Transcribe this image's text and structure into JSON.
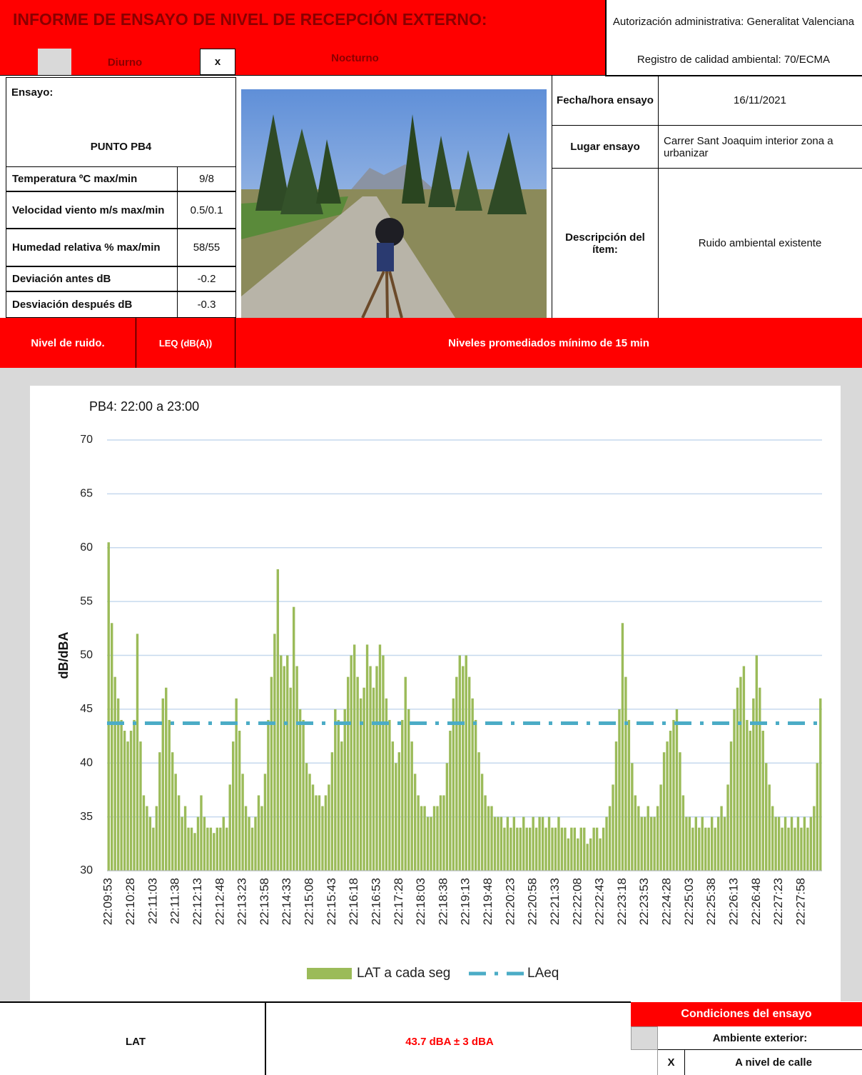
{
  "header": {
    "title": "INFORME DE ENSAYO DE NIVEL DE RECEPCIÓN EXTERNO:",
    "diurno": "Diurno",
    "nocturno_mark": "x",
    "nocturno": "Nocturno",
    "authorization": "Autorización administrativa: Generalitat Valenciana",
    "registry": "Registro de calidad ambiental:  70/ECMA"
  },
  "test": {
    "label": "Ensayo:",
    "point": "PUNTO PB4",
    "conditions": [
      [
        "Temperatura ºC max/min",
        "9/8"
      ],
      [
        "Velocidad viento  m/s max/min",
        "0.5/0.1"
      ],
      [
        "Humedad relativa  % max/min",
        "58/55"
      ],
      [
        "Deviación antes dB",
        "-0.2"
      ],
      [
        "Desviación después dB",
        "-0.3"
      ]
    ]
  },
  "details": [
    [
      "Fecha/hora ensayo",
      "16/11/2021"
    ],
    [
      "Lugar ensayo",
      "Carrer Sant Joaquim interior zona a urbanizar"
    ],
    [
      "Descripción del ítem:",
      "Ruido ambiental existente"
    ]
  ],
  "band": [
    "Nivel de ruido.",
    "LEQ (dB(A))",
    "Niveles promediados mínimo de 15 min"
  ],
  "chart_data": {
    "type": "bar",
    "title": "PB4: 22:00  a 23:00",
    "y_label": "dB/dBA",
    "categories": [
      "22:09:53",
      null,
      null,
      null,
      null,
      null,
      null,
      "22:10:28",
      null,
      null,
      null,
      null,
      null,
      null,
      "22:11:03",
      null,
      null,
      null,
      null,
      null,
      null,
      "22:11:38",
      null,
      null,
      null,
      null,
      null,
      null,
      "22:12:13",
      null,
      null,
      null,
      null,
      null,
      null,
      "22:12:48",
      null,
      null,
      null,
      null,
      null,
      null,
      "22:13:23",
      null,
      null,
      null,
      null,
      null,
      null,
      "22:13:58",
      null,
      null,
      null,
      null,
      null,
      null,
      "22:14:33",
      null,
      null,
      null,
      null,
      null,
      null,
      "22:15:08",
      null,
      null,
      null,
      null,
      null,
      null,
      "22:15:43",
      null,
      null,
      null,
      null,
      null,
      null,
      "22:16:18",
      null,
      null,
      null,
      null,
      null,
      null,
      "22:16:53",
      null,
      null,
      null,
      null,
      null,
      null,
      "22:17:28",
      null,
      null,
      null,
      null,
      null,
      null,
      "22:18:03",
      null,
      null,
      null,
      null,
      null,
      null,
      "22:18:38",
      null,
      null,
      null,
      null,
      null,
      null,
      "22:19:13",
      null,
      null,
      null,
      null,
      null,
      null,
      "22:19:48",
      null,
      null,
      null,
      null,
      null,
      null,
      "22:20:23",
      null,
      null,
      null,
      null,
      null,
      null,
      "22:20:58",
      null,
      null,
      null,
      null,
      null,
      null,
      "22:21:33",
      null,
      null,
      null,
      null,
      null,
      null,
      "22:22:08",
      null,
      null,
      null,
      null,
      null,
      null,
      "22:22:43",
      null,
      null,
      null,
      null,
      null,
      null,
      "22:23:18",
      null,
      null,
      null,
      null,
      null,
      null,
      "22:23:53",
      null,
      null,
      null,
      null,
      null,
      null,
      "22:24:28",
      null,
      null,
      null,
      null,
      null,
      null,
      "22:25:03",
      null,
      null,
      null,
      null,
      null,
      null,
      "22:25:38",
      null,
      null,
      null,
      null,
      null,
      null,
      "22:26:13",
      null,
      null,
      null,
      null,
      null,
      null,
      "22:26:48",
      null,
      null,
      null,
      null,
      null,
      null,
      "22:27:23",
      null,
      null,
      null,
      null,
      null,
      null,
      "22:27:58",
      null,
      null,
      null,
      null,
      null,
      null
    ],
    "series": [
      {
        "name": "LAT a cada seg",
        "color": "#9bbb59",
        "values": [
          60.5,
          53,
          48,
          46,
          44,
          43,
          42,
          43,
          44,
          52,
          42,
          37,
          36,
          35,
          34,
          36,
          41,
          46,
          47,
          44,
          41,
          39,
          37,
          35,
          36,
          34,
          34,
          33.5,
          35,
          37,
          35,
          34,
          34,
          33.5,
          34,
          34,
          35,
          34,
          38,
          42,
          46,
          43,
          39,
          36,
          35,
          34,
          35,
          37,
          36,
          39,
          44,
          48,
          52,
          58,
          50,
          49,
          50,
          47,
          54.5,
          49,
          45,
          44,
          40,
          39,
          38,
          37,
          37,
          36,
          37,
          38,
          41,
          45,
          44,
          42,
          45,
          48,
          50,
          51,
          48,
          46,
          47,
          51,
          49,
          47,
          49,
          51,
          50,
          46,
          44,
          42,
          40,
          41,
          44,
          48,
          45,
          42,
          39,
          37,
          36,
          36,
          35,
          35,
          36,
          36,
          37,
          37,
          40,
          43,
          46,
          48,
          50,
          49,
          50,
          48,
          46,
          44,
          41,
          39,
          37,
          36,
          36,
          35,
          35,
          35,
          34,
          35,
          34,
          35,
          34,
          34,
          35,
          34,
          34,
          35,
          34,
          35,
          35,
          34,
          35,
          34,
          34,
          35,
          34,
          34,
          33,
          34,
          34,
          33,
          34,
          34,
          32.5,
          33,
          34,
          34,
          33,
          34,
          35,
          36,
          38,
          42,
          45,
          53,
          48,
          44,
          40,
          37,
          36,
          35,
          35,
          36,
          35,
          35,
          36,
          38,
          41,
          42,
          43,
          44,
          45,
          41,
          37,
          35,
          35,
          34,
          35,
          34,
          35,
          34,
          34,
          35,
          34,
          35,
          36,
          35,
          38,
          42,
          45,
          47,
          48,
          49,
          44,
          43,
          46,
          50,
          47,
          43,
          40,
          38,
          36,
          35,
          35,
          34,
          35,
          34,
          35,
          34,
          35,
          34,
          35,
          34,
          35,
          36,
          40,
          46
        ]
      }
    ],
    "reference_line": {
      "name": "LAeq",
      "value": 43.7,
      "color": "#4bacc6"
    },
    "ylim": [
      30,
      70
    ],
    "yticks": [
      30,
      35,
      40,
      45,
      50,
      55,
      60,
      65,
      70
    ],
    "grid": true,
    "legend": "bottom"
  },
  "results": {
    "label": "LAT",
    "value": "43.7 dBA  ± 3 dBA"
  },
  "conditions": {
    "title": "Condiciones del ensayo",
    "rows": [
      {
        "mark": null,
        "label": "Ambiente exterior:"
      },
      {
        "mark": "X",
        "label": "A nivel de calle"
      }
    ]
  }
}
